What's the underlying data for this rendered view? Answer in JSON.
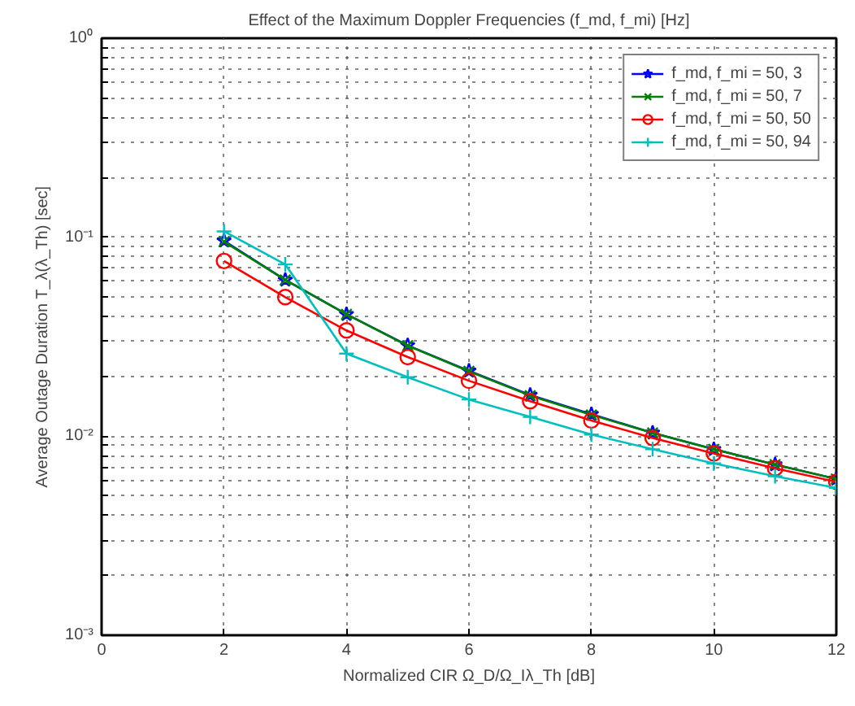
{
  "chart_data": {
    "type": "line",
    "title": "Effect of the Maximum Doppler Frequencies (f_md, f_mi) [Hz]",
    "xlabel": "Normalized CIR Ω_D/Ω_Iλ_Th [dB]",
    "ylabel": "Average Outage Duration T_λ(λ_Th) [sec]",
    "x": [
      2,
      3,
      4,
      5,
      6,
      7,
      8,
      9,
      10,
      11,
      12
    ],
    "series": [
      {
        "name": "f_md, f_mi = 50, 3",
        "color": "#0000ff",
        "marker": "star",
        "values": [
          0.096,
          0.061,
          0.041,
          0.0286,
          0.0213,
          0.0161,
          0.0129,
          0.0104,
          0.0086,
          0.0072,
          0.0061
        ]
      },
      {
        "name": "f_md, f_mi = 50, 7",
        "color": "#008000",
        "marker": "x",
        "values": [
          0.095,
          0.061,
          0.041,
          0.0285,
          0.0212,
          0.016,
          0.0128,
          0.0104,
          0.0086,
          0.0072,
          0.0061
        ]
      },
      {
        "name": "f_md, f_mi = 50, 50",
        "color": "#ff0000",
        "marker": "circle",
        "values": [
          0.076,
          0.05,
          0.034,
          0.025,
          0.019,
          0.015,
          0.012,
          0.0098,
          0.0082,
          0.0069,
          0.0059
        ]
      },
      {
        "name": "f_md, f_mi = 50, 94",
        "color": "#00bfbf",
        "marker": "cross",
        "values": [
          0.107,
          0.073,
          0.026,
          0.0198,
          0.0153,
          0.0125,
          0.0102,
          0.0086,
          0.0073,
          0.0063,
          0.0055
        ]
      }
    ],
    "xlim": [
      0,
      12
    ],
    "xticks": [
      0,
      2,
      4,
      6,
      8,
      10,
      12
    ],
    "ylim": [
      0.001,
      1
    ],
    "log": true,
    "yticks": [
      {
        "value": 0.001,
        "label": "10⁻³"
      },
      {
        "value": 0.002,
        "label": null
      },
      {
        "value": 0.003,
        "label": null
      },
      {
        "value": 0.004,
        "label": null
      },
      {
        "value": 0.005,
        "label": null
      },
      {
        "value": 0.006,
        "label": null
      },
      {
        "value": 0.007,
        "label": null
      },
      {
        "value": 0.008,
        "label": null
      },
      {
        "value": 0.009,
        "label": null
      },
      {
        "value": 0.01,
        "label": "10⁻²"
      },
      {
        "value": 0.02,
        "label": null
      },
      {
        "value": 0.03,
        "label": null
      },
      {
        "value": 0.04,
        "label": null
      },
      {
        "value": 0.05,
        "label": null
      },
      {
        "value": 0.06,
        "label": null
      },
      {
        "value": 0.07,
        "label": null
      },
      {
        "value": 0.08,
        "label": null
      },
      {
        "value": 0.09,
        "label": null
      },
      {
        "value": 0.1,
        "label": "10⁻¹"
      },
      {
        "value": 0.2,
        "label": null
      },
      {
        "value": 0.3,
        "label": null
      },
      {
        "value": 0.4,
        "label": null
      },
      {
        "value": 0.5,
        "label": null
      },
      {
        "value": 0.6,
        "label": null
      },
      {
        "value": 0.7,
        "label": null
      },
      {
        "value": 0.8,
        "label": null
      },
      {
        "value": 0.9,
        "label": null
      },
      {
        "value": 1,
        "label": "10⁰"
      }
    ],
    "grid": true,
    "legend": "top right",
    "line_style": "solid"
  }
}
